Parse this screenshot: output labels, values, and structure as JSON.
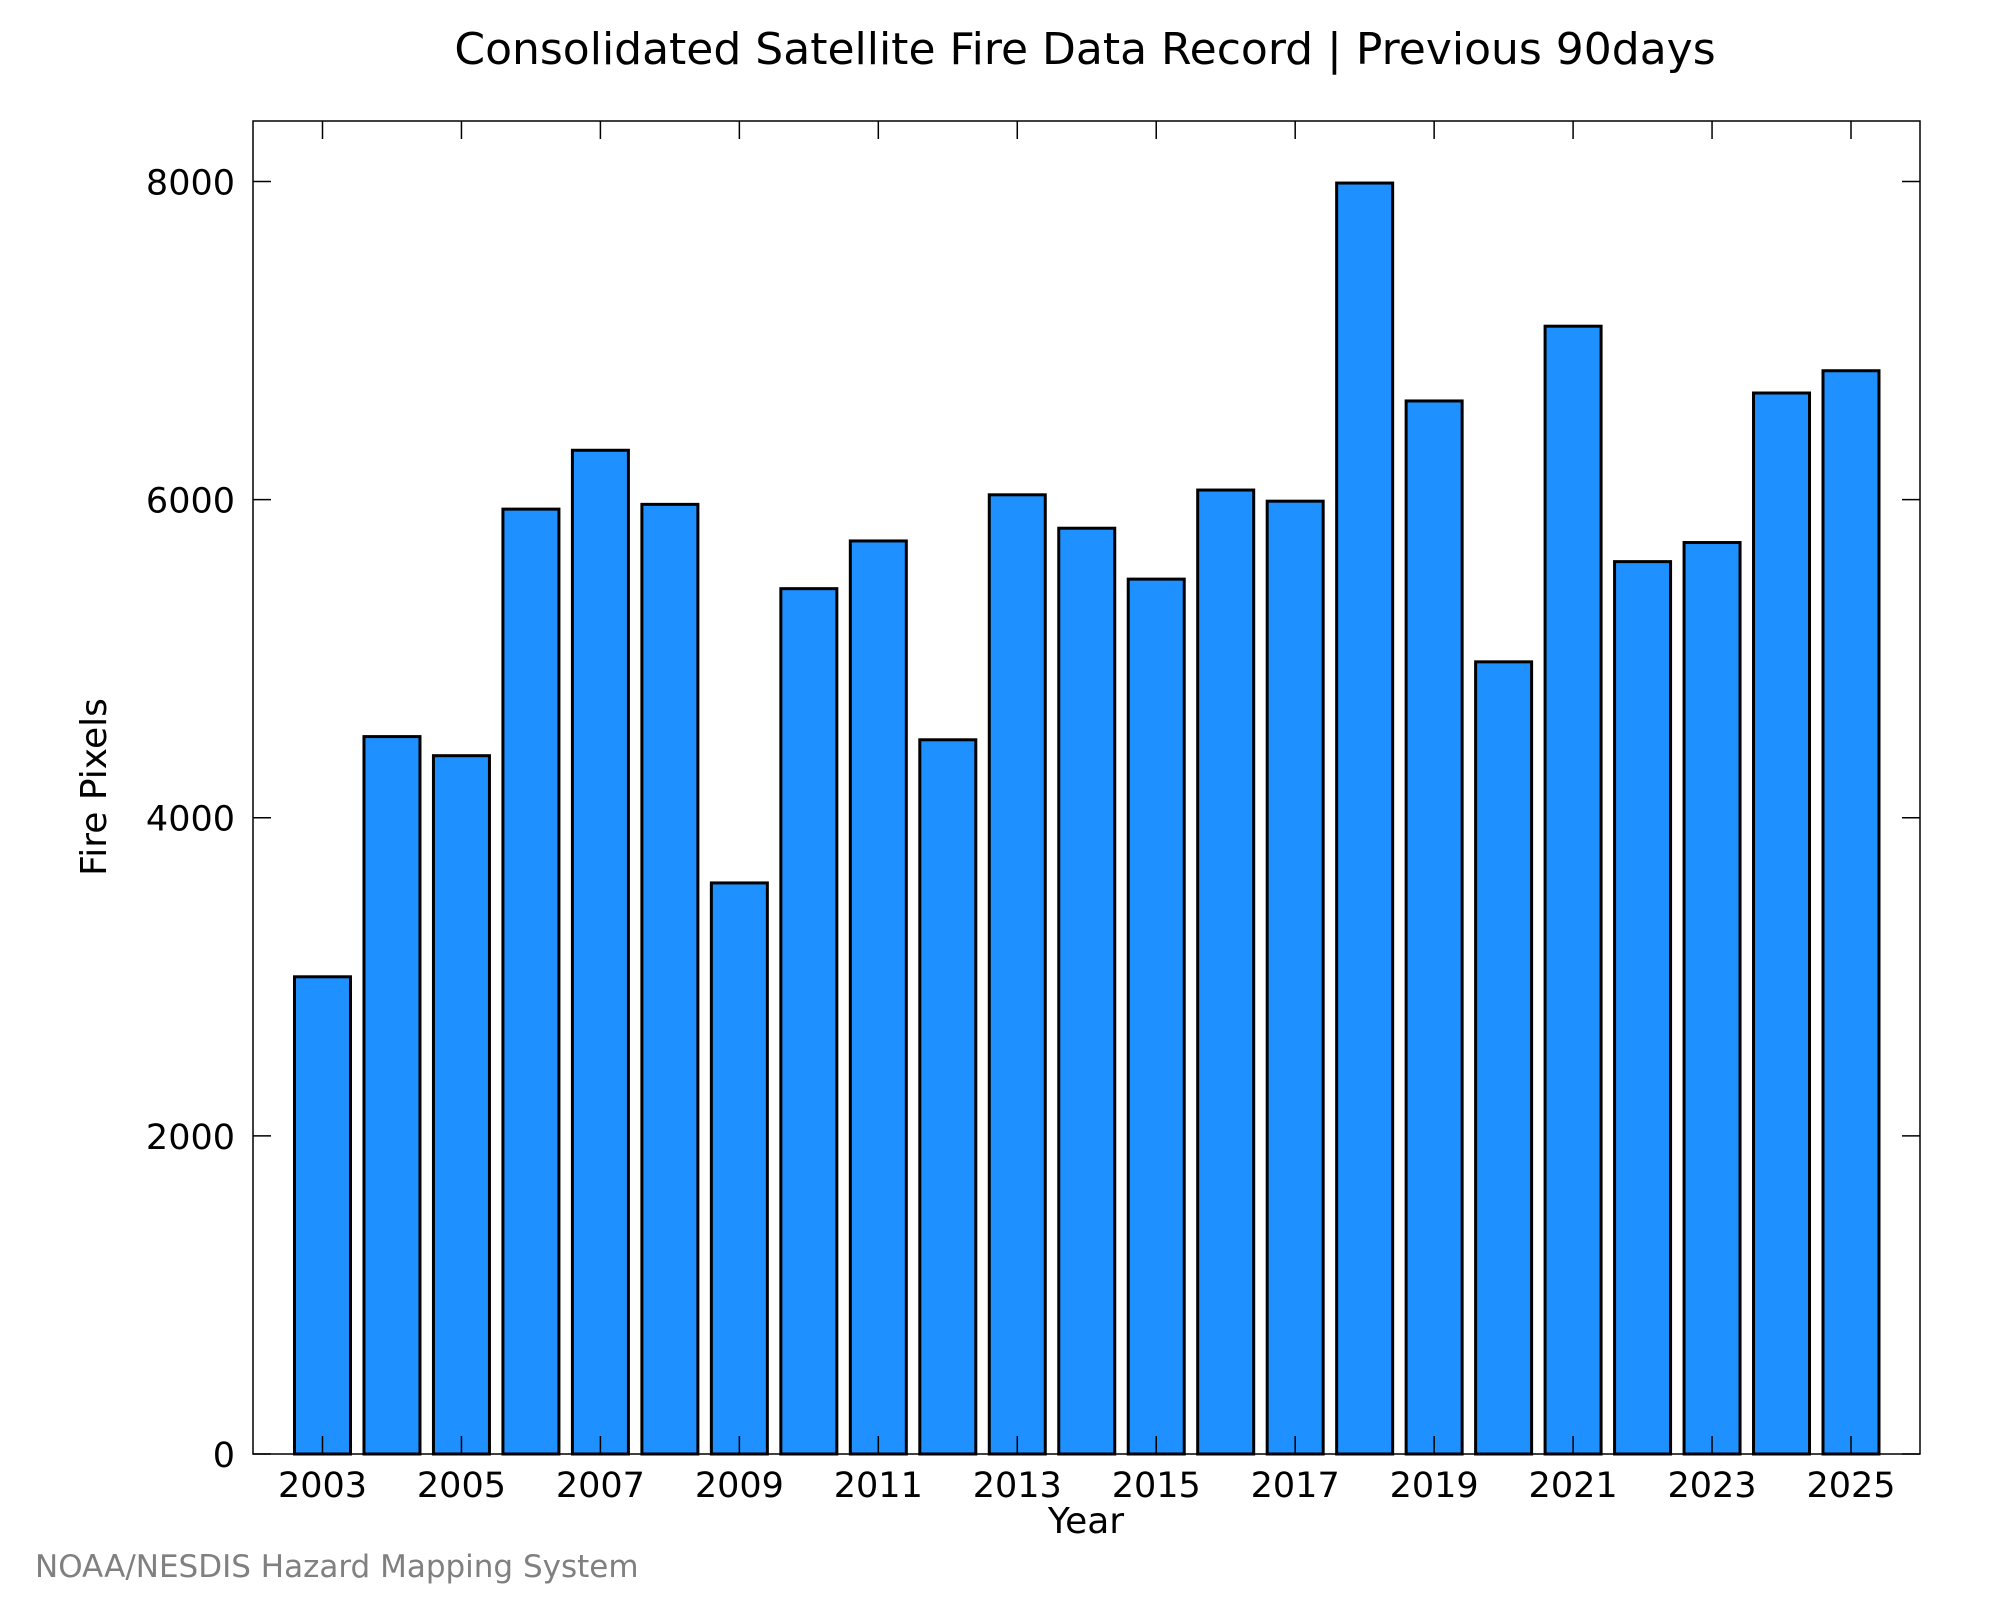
{
  "chart_data": {
    "type": "bar",
    "title": "Consolidated Satellite Fire Data Record | Previous 90days",
    "xlabel": "Year",
    "ylabel": "Fire Pixels",
    "categories": [
      "2003",
      "2004",
      "2005",
      "2006",
      "2007",
      "2008",
      "2009",
      "2010",
      "2011",
      "2012",
      "2013",
      "2014",
      "2015",
      "2016",
      "2017",
      "2018",
      "2019",
      "2020",
      "2021",
      "2022",
      "2023",
      "2024",
      "2025"
    ],
    "values": [
      3000,
      4510,
      4390,
      5940,
      6310,
      5970,
      3590,
      5440,
      5740,
      4490,
      6030,
      5820,
      5500,
      6060,
      5990,
      7990,
      6620,
      4980,
      7090,
      5610,
      5730,
      6670,
      6810
    ],
    "x_tick_labels": [
      "2003",
      "2005",
      "2007",
      "2009",
      "2011",
      "2013",
      "2015",
      "2017",
      "2019",
      "2021",
      "2023",
      "2025"
    ],
    "y_ticks": [
      0,
      2000,
      4000,
      6000,
      8000
    ],
    "ylim": [
      0,
      8380
    ],
    "grid": false,
    "legend": "none",
    "bar_color": "#1e90ff",
    "bar_edge_color": "#000000"
  },
  "footer": {
    "credit": "NOAA/NESDIS Hazard Mapping System"
  }
}
